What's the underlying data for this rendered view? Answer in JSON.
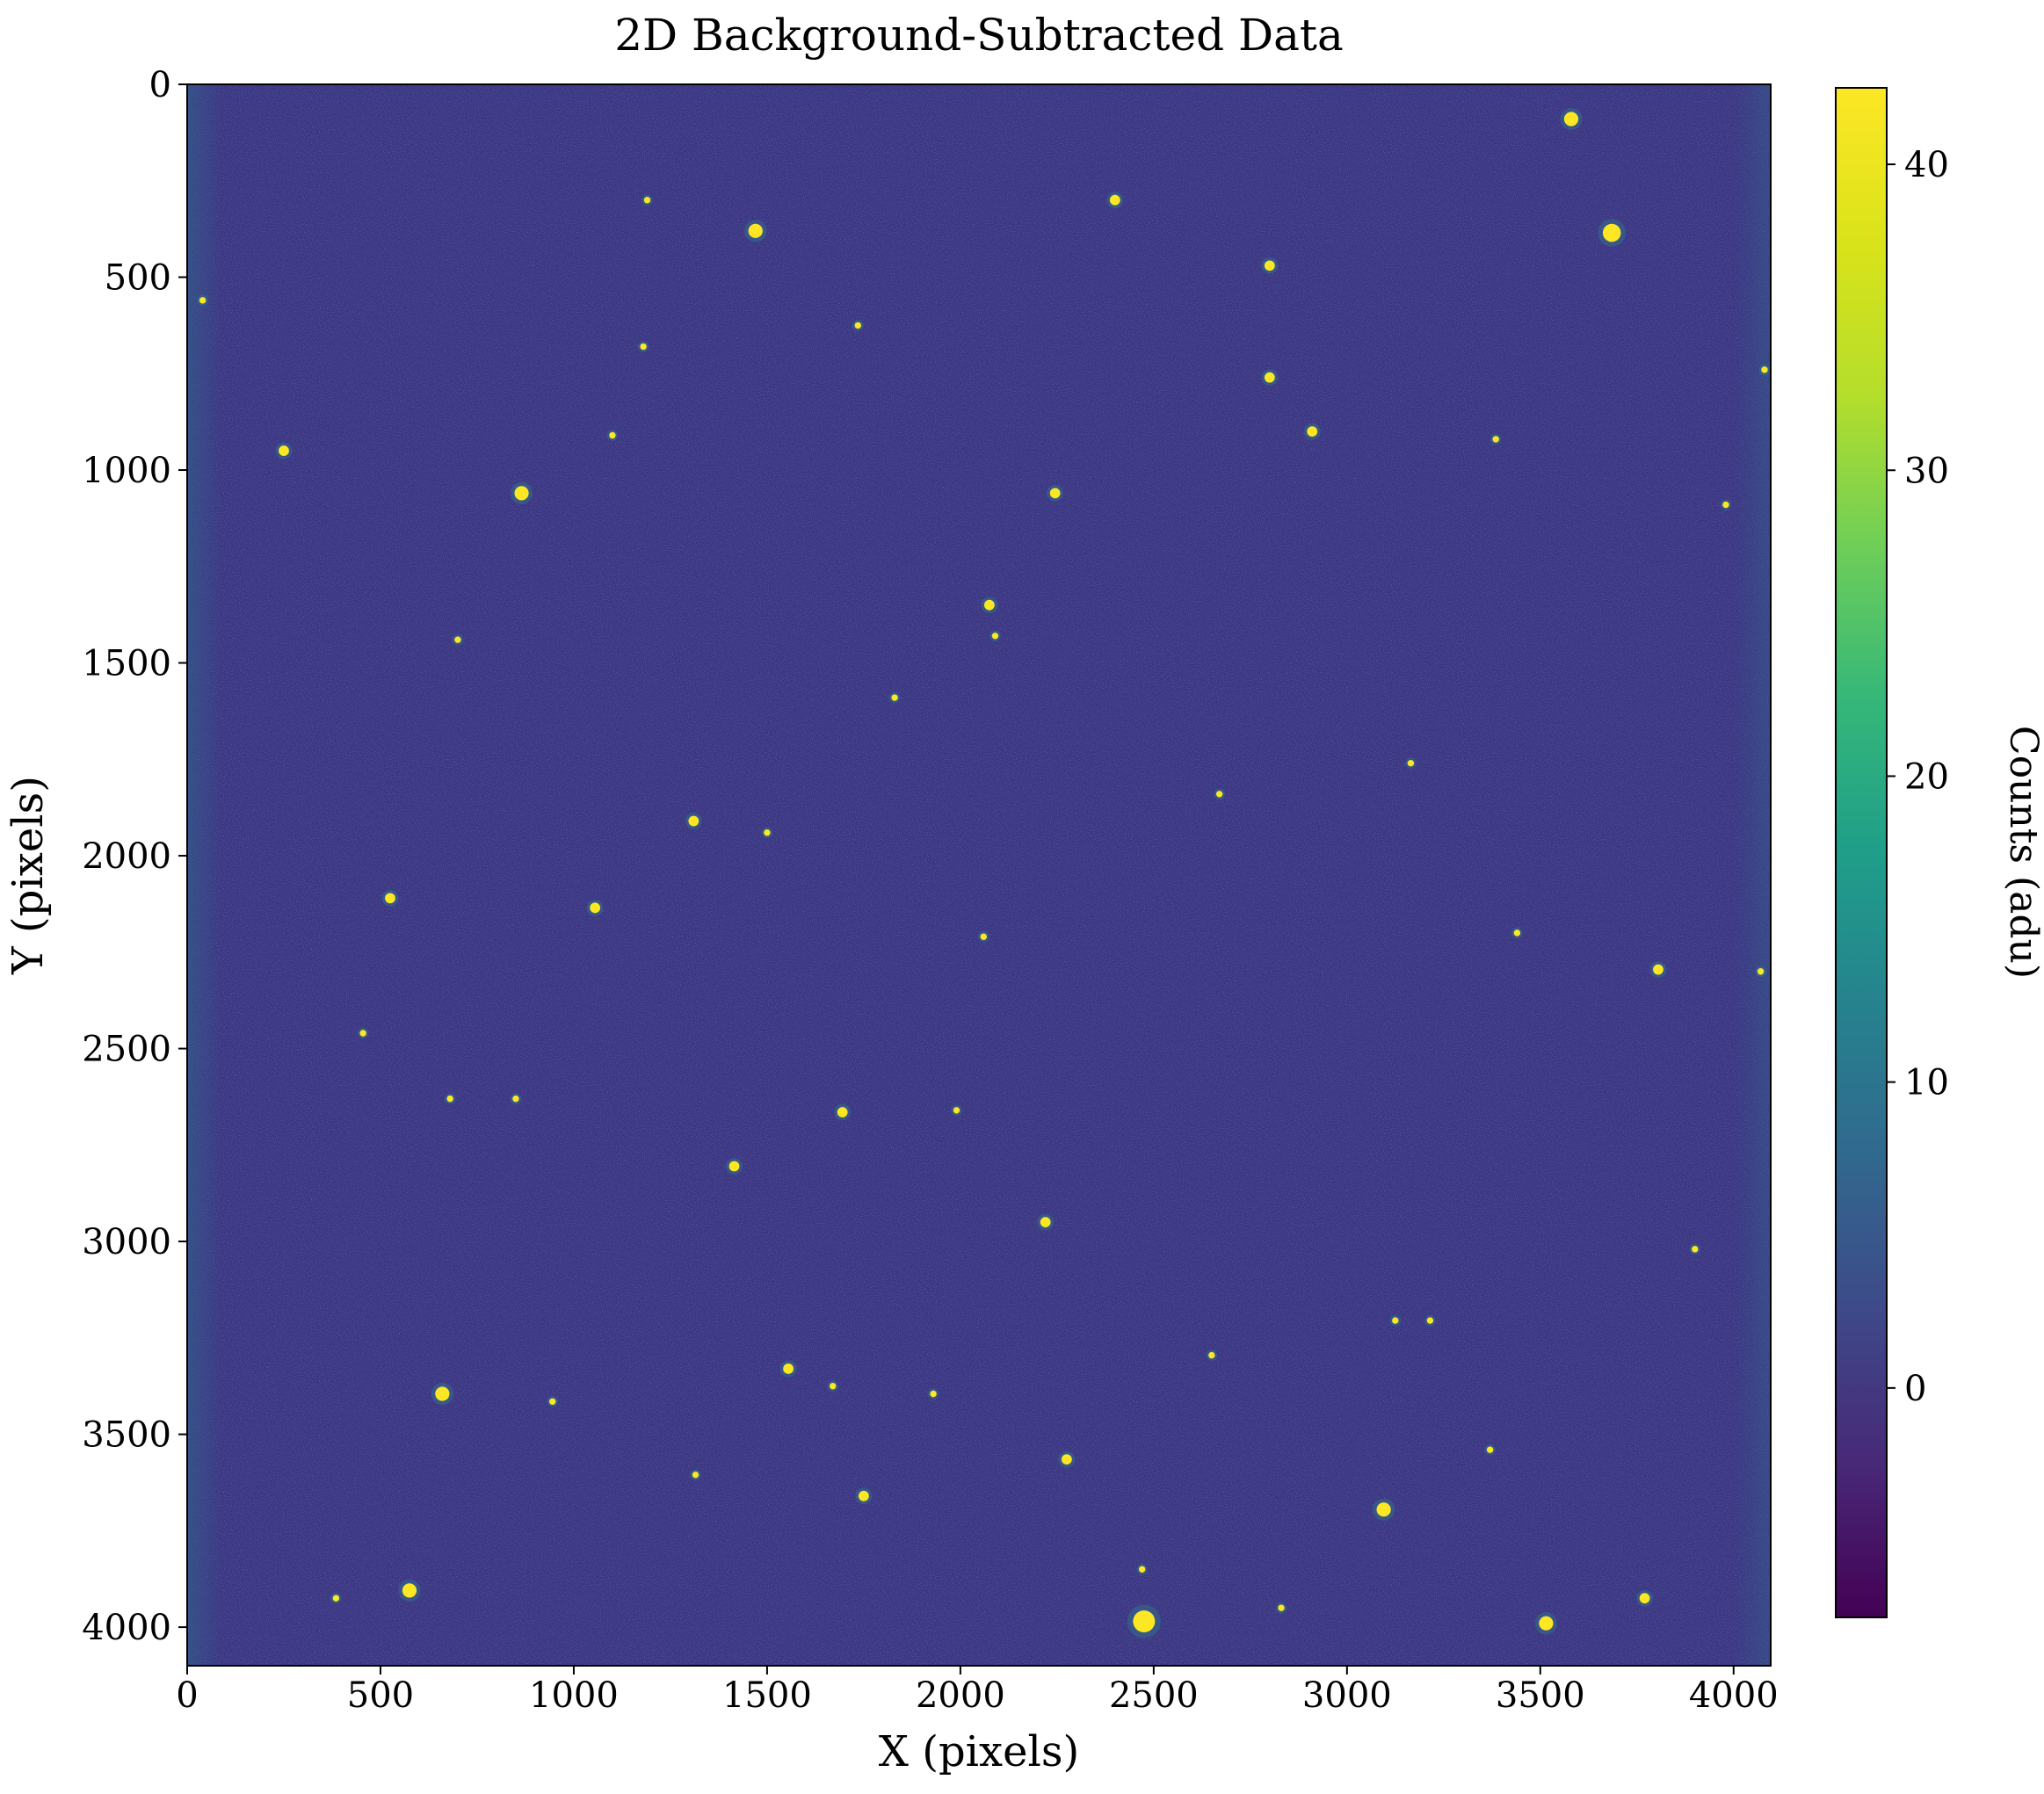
{
  "chart_data": {
    "type": "heatmap",
    "title": "2D Background-Subtracted Data",
    "xlabel": "X (pixels)",
    "ylabel": "Y (pixels)",
    "xlim": [
      0,
      4096
    ],
    "ylim": [
      4100,
      0
    ],
    "x_ticks": [
      0,
      500,
      1000,
      1500,
      2000,
      2500,
      3000,
      3500,
      4000
    ],
    "y_ticks": [
      0,
      500,
      1000,
      1500,
      2000,
      2500,
      3000,
      3500,
      4000
    ],
    "colormap": "viridis",
    "background_level": 0,
    "colorbar": {
      "label": "Counts (adu)",
      "range": [
        -7.5,
        42.5
      ],
      "ticks": [
        0,
        10,
        20,
        30,
        40
      ]
    },
    "stars": [
      {
        "x": 3580,
        "y": 90,
        "r": 3
      },
      {
        "x": 3685,
        "y": 385,
        "r": 4
      },
      {
        "x": 1470,
        "y": 380,
        "r": 3
      },
      {
        "x": 2400,
        "y": 300,
        "r": 2
      },
      {
        "x": 1190,
        "y": 300,
        "r": 1
      },
      {
        "x": 2800,
        "y": 470,
        "r": 2
      },
      {
        "x": 40,
        "y": 560,
        "r": 1
      },
      {
        "x": 1735,
        "y": 625,
        "r": 1
      },
      {
        "x": 2800,
        "y": 760,
        "r": 2
      },
      {
        "x": 2910,
        "y": 900,
        "r": 2
      },
      {
        "x": 250,
        "y": 950,
        "r": 2
      },
      {
        "x": 865,
        "y": 1060,
        "r": 3
      },
      {
        "x": 2245,
        "y": 1060,
        "r": 2
      },
      {
        "x": 2075,
        "y": 1350,
        "r": 2
      },
      {
        "x": 700,
        "y": 1440,
        "r": 1
      },
      {
        "x": 2090,
        "y": 1430,
        "r": 1
      },
      {
        "x": 1830,
        "y": 1590,
        "r": 1
      },
      {
        "x": 1310,
        "y": 1910,
        "r": 2
      },
      {
        "x": 2670,
        "y": 1840,
        "r": 1
      },
      {
        "x": 525,
        "y": 2110,
        "r": 2
      },
      {
        "x": 1055,
        "y": 2135,
        "r": 2
      },
      {
        "x": 3805,
        "y": 2295,
        "r": 2
      },
      {
        "x": 2060,
        "y": 2210,
        "r": 1
      },
      {
        "x": 455,
        "y": 2460,
        "r": 1
      },
      {
        "x": 1695,
        "y": 2665,
        "r": 2
      },
      {
        "x": 680,
        "y": 2630,
        "r": 1
      },
      {
        "x": 1415,
        "y": 2805,
        "r": 2
      },
      {
        "x": 2220,
        "y": 2950,
        "r": 2
      },
      {
        "x": 660,
        "y": 3395,
        "r": 3
      },
      {
        "x": 1555,
        "y": 3330,
        "r": 2
      },
      {
        "x": 1670,
        "y": 3375,
        "r": 1
      },
      {
        "x": 945,
        "y": 3415,
        "r": 1
      },
      {
        "x": 1930,
        "y": 3395,
        "r": 1
      },
      {
        "x": 2650,
        "y": 3295,
        "r": 1
      },
      {
        "x": 3370,
        "y": 3540,
        "r": 1
      },
      {
        "x": 2275,
        "y": 3565,
        "r": 2
      },
      {
        "x": 1750,
        "y": 3660,
        "r": 2
      },
      {
        "x": 3095,
        "y": 3695,
        "r": 3
      },
      {
        "x": 575,
        "y": 3905,
        "r": 3
      },
      {
        "x": 385,
        "y": 3925,
        "r": 1
      },
      {
        "x": 2475,
        "y": 3985,
        "r": 5
      },
      {
        "x": 2470,
        "y": 3850,
        "r": 1
      },
      {
        "x": 3515,
        "y": 3990,
        "r": 3
      },
      {
        "x": 3770,
        "y": 3925,
        "r": 2
      },
      {
        "x": 2830,
        "y": 3950,
        "r": 1
      },
      {
        "x": 1315,
        "y": 3605,
        "r": 1
      },
      {
        "x": 3125,
        "y": 3205,
        "r": 1
      },
      {
        "x": 3440,
        "y": 2200,
        "r": 1
      },
      {
        "x": 3165,
        "y": 1760,
        "r": 1
      },
      {
        "x": 3385,
        "y": 920,
        "r": 1
      },
      {
        "x": 1180,
        "y": 680,
        "r": 1
      },
      {
        "x": 3980,
        "y": 1090,
        "r": 1
      },
      {
        "x": 4080,
        "y": 740,
        "r": 1
      },
      {
        "x": 3900,
        "y": 3020,
        "r": 1
      },
      {
        "x": 4070,
        "y": 2300,
        "r": 1
      },
      {
        "x": 1100,
        "y": 910,
        "r": 1
      },
      {
        "x": 1990,
        "y": 2660,
        "r": 1
      },
      {
        "x": 1500,
        "y": 1940,
        "r": 1
      },
      {
        "x": 850,
        "y": 2630,
        "r": 1
      },
      {
        "x": 3215,
        "y": 3205,
        "r": 1
      }
    ]
  }
}
